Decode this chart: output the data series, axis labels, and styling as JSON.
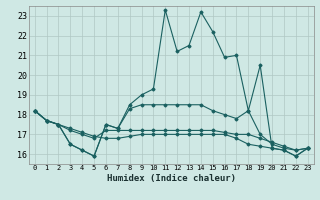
{
  "title": "",
  "xlabel": "Humidex (Indice chaleur)",
  "ylabel": "",
  "xlim": [
    -0.5,
    23.5
  ],
  "ylim": [
    15.5,
    23.5
  ],
  "yticks": [
    16,
    17,
    18,
    19,
    20,
    21,
    22,
    23
  ],
  "xticks": [
    0,
    1,
    2,
    3,
    4,
    5,
    6,
    7,
    8,
    9,
    10,
    11,
    12,
    13,
    14,
    15,
    16,
    17,
    18,
    19,
    20,
    21,
    22,
    23
  ],
  "bg_color": "#cfe8e4",
  "grid_color": "#b0c8c4",
  "line_color": "#1a6060",
  "lines": [
    {
      "x": [
        0,
        1,
        2,
        3,
        4,
        5,
        6,
        7,
        8,
        9,
        10,
        11,
        12,
        13,
        14,
        15,
        16,
        17,
        18,
        19,
        20,
        21,
        22,
        23
      ],
      "y": [
        18.2,
        17.7,
        17.5,
        16.5,
        16.2,
        15.9,
        17.5,
        17.3,
        18.5,
        19.0,
        19.3,
        23.3,
        21.2,
        21.5,
        23.2,
        22.2,
        20.9,
        21.0,
        18.2,
        20.5,
        16.3,
        16.2,
        15.9,
        16.3
      ]
    },
    {
      "x": [
        0,
        1,
        2,
        3,
        4,
        5,
        6,
        7,
        8,
        9,
        10,
        11,
        12,
        13,
        14,
        15,
        16,
        17,
        18,
        19,
        20,
        21,
        22,
        23
      ],
      "y": [
        18.2,
        17.7,
        17.5,
        16.5,
        16.2,
        15.9,
        17.5,
        17.3,
        18.3,
        18.5,
        18.5,
        18.5,
        18.5,
        18.5,
        18.5,
        18.2,
        18.0,
        17.8,
        18.2,
        17.0,
        16.5,
        16.3,
        16.2,
        16.3
      ]
    },
    {
      "x": [
        0,
        1,
        2,
        3,
        4,
        5,
        6,
        7,
        8,
        9,
        10,
        11,
        12,
        13,
        14,
        15,
        16,
        17,
        18,
        19,
        20,
        21,
        22,
        23
      ],
      "y": [
        18.2,
        17.7,
        17.5,
        17.2,
        17.0,
        16.8,
        17.2,
        17.2,
        17.2,
        17.2,
        17.2,
        17.2,
        17.2,
        17.2,
        17.2,
        17.2,
        17.1,
        17.0,
        17.0,
        16.8,
        16.6,
        16.4,
        16.2,
        16.3
      ]
    },
    {
      "x": [
        0,
        1,
        2,
        3,
        4,
        5,
        6,
        7,
        8,
        9,
        10,
        11,
        12,
        13,
        14,
        15,
        16,
        17,
        18,
        19,
        20,
        21,
        22,
        23
      ],
      "y": [
        18.2,
        17.7,
        17.5,
        17.3,
        17.1,
        16.9,
        16.8,
        16.8,
        16.9,
        17.0,
        17.0,
        17.0,
        17.0,
        17.0,
        17.0,
        17.0,
        17.0,
        16.8,
        16.5,
        16.4,
        16.3,
        16.2,
        15.9,
        16.3
      ]
    }
  ]
}
